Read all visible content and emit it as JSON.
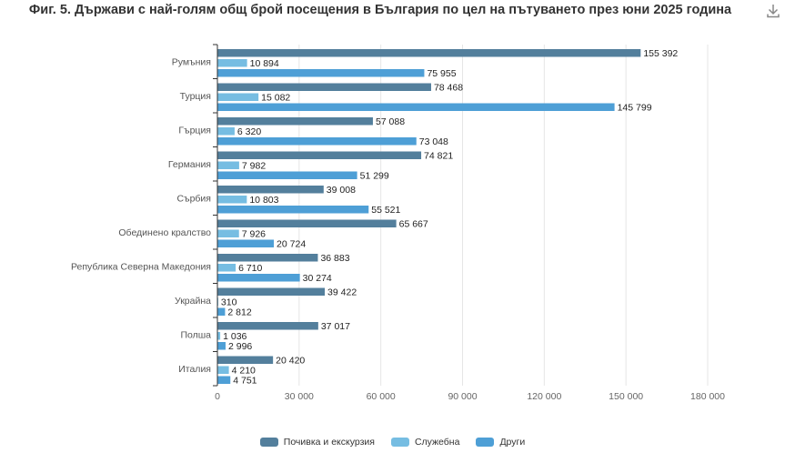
{
  "title": "Фиг. 5. Държави с най-голям общ брой посещения в България по цел на пътуването през юни 2025 година",
  "icons": {
    "download": "download-icon"
  },
  "colors": {
    "series": [
      "#537f9c",
      "#76bde2",
      "#4e9fd6"
    ],
    "grid": "#e6e6e6",
    "axis": "#333333"
  },
  "chart_data": {
    "type": "bar",
    "orientation": "horizontal",
    "title": "Фиг. 5. Държави с най-голям общ брой посещения в България по цел на пътуването през юни 2025 година",
    "categories": [
      "Румъния",
      "Турция",
      "Гърция",
      "Германия",
      "Сърбия",
      "Обединено кралство",
      "Република Северна Македония",
      "Украйна",
      "Полша",
      "Италия"
    ],
    "series": [
      {
        "name": "Почивка и екскурзия",
        "values": [
          155392,
          78468,
          57088,
          74821,
          39008,
          65667,
          36883,
          39422,
          37017,
          20420
        ]
      },
      {
        "name": "Служебна",
        "values": [
          10894,
          15082,
          6320,
          7982,
          10803,
          7926,
          6710,
          310,
          1036,
          4210
        ]
      },
      {
        "name": "Други",
        "values": [
          75955,
          145799,
          73048,
          51299,
          55521,
          20724,
          30274,
          2812,
          2996,
          4751
        ]
      }
    ],
    "value_labels": [
      [
        "155 392",
        "78 468",
        "57 088",
        "74 821",
        "39 008",
        "65 667",
        "36 883",
        "39 422",
        "37 017",
        "20 420"
      ],
      [
        "10 894",
        "15 082",
        "6 320",
        "7 982",
        "10 803",
        "7 926",
        "6 710",
        "310",
        "1 036",
        "4 210"
      ],
      [
        "75 955",
        "145 799",
        "73 048",
        "51 299",
        "55 521",
        "20 724",
        "30 274",
        "2 812",
        "2 996",
        "4 751"
      ]
    ],
    "xlim": [
      0,
      180000
    ],
    "xticks": [
      0,
      30000,
      60000,
      90000,
      120000,
      150000,
      180000
    ],
    "xtick_labels": [
      "0",
      "30 000",
      "60 000",
      "90 000",
      "120 000",
      "150 000",
      "180 000"
    ],
    "xlabel": "",
    "ylabel": "",
    "grid": true,
    "legend_position": "bottom"
  }
}
